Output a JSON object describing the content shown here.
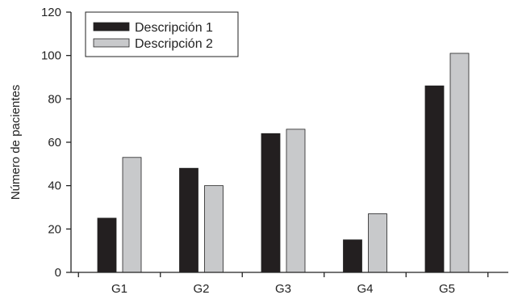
{
  "chart_data": {
    "type": "bar",
    "title": "",
    "xlabel": "",
    "ylabel": "Número de pacientes",
    "categories": [
      "G1",
      "G2",
      "G3",
      "G4",
      "G5"
    ],
    "series": [
      {
        "name": "Descripción 1",
        "color": "#231f20",
        "values": [
          25,
          48,
          64,
          15,
          86
        ]
      },
      {
        "name": "Descripción 2",
        "color": "#c8c9cb",
        "values": [
          53,
          40,
          66,
          27,
          101
        ]
      }
    ],
    "ylim": [
      0,
      120
    ],
    "yticks": [
      0,
      20,
      40,
      60,
      80,
      100,
      120
    ],
    "grid": false,
    "legend_position": "top-left"
  }
}
